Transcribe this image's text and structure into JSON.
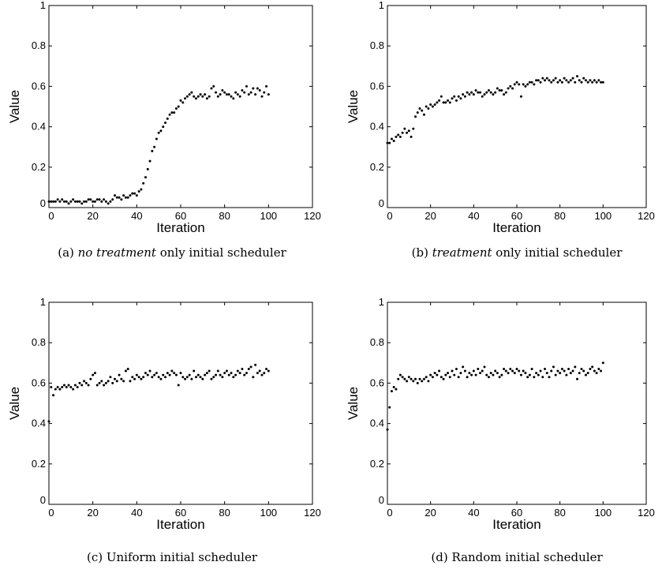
{
  "chart_data": [
    {
      "type": "scatter",
      "caption": {
        "label": "(a)",
        "italic": "no treatment",
        "rest": "only initial scheduler"
      },
      "xlabel": "Iteration",
      "ylabel": "Value",
      "xlim": [
        0,
        120
      ],
      "ylim": [
        0,
        1
      ],
      "xticks": [
        "0",
        "20",
        "40",
        "60",
        "80",
        "100",
        "120"
      ],
      "yticks": [
        "0",
        "0.2",
        "0.4",
        "0.6",
        "0.8",
        "1"
      ],
      "grid": false,
      "series": [
        {
          "color": "#000000",
          "x": [
            0,
            1,
            2,
            3,
            4,
            5,
            6,
            7,
            8,
            9,
            10,
            11,
            12,
            13,
            14,
            15,
            16,
            17,
            18,
            19,
            20,
            21,
            22,
            23,
            24,
            25,
            26,
            27,
            28,
            29,
            30,
            31,
            32,
            33,
            34,
            35,
            36,
            37,
            38,
            39,
            40,
            41,
            42,
            43,
            44,
            45,
            46,
            47,
            48,
            49,
            50,
            51,
            52,
            53,
            54,
            55,
            56,
            57,
            58,
            59,
            60,
            61,
            62,
            63,
            64,
            65,
            66,
            67,
            68,
            69,
            70,
            71,
            72,
            73,
            74,
            75,
            76,
            77,
            78,
            79,
            80,
            81,
            82,
            83,
            84,
            85,
            86,
            87,
            88,
            89,
            90,
            91,
            92,
            93,
            94,
            95,
            96,
            97,
            98,
            99,
            100
          ],
          "y": [
            0.03,
            0.03,
            0.03,
            0.03,
            0.04,
            0.03,
            0.04,
            0.03,
            0.03,
            0.02,
            0.03,
            0.04,
            0.03,
            0.03,
            0.03,
            0.02,
            0.03,
            0.03,
            0.04,
            0.04,
            0.03,
            0.03,
            0.04,
            0.04,
            0.03,
            0.04,
            0.03,
            0.02,
            0.03,
            0.04,
            0.06,
            0.05,
            0.05,
            0.04,
            0.06,
            0.05,
            0.05,
            0.06,
            0.07,
            0.07,
            0.06,
            0.08,
            0.09,
            0.12,
            0.15,
            0.19,
            0.23,
            0.28,
            0.3,
            0.34,
            0.37,
            0.38,
            0.4,
            0.42,
            0.44,
            0.46,
            0.47,
            0.47,
            0.49,
            0.5,
            0.53,
            0.52,
            0.54,
            0.55,
            0.56,
            0.57,
            0.55,
            0.54,
            0.55,
            0.56,
            0.55,
            0.56,
            0.54,
            0.55,
            0.59,
            0.6,
            0.57,
            0.55,
            0.56,
            0.58,
            0.57,
            0.56,
            0.56,
            0.55,
            0.54,
            0.57,
            0.56,
            0.55,
            0.58,
            0.57,
            0.6,
            0.56,
            0.57,
            0.59,
            0.56,
            0.59,
            0.58,
            0.55,
            0.57,
            0.6,
            0.56
          ]
        }
      ]
    },
    {
      "type": "scatter",
      "caption": {
        "label": "(b)",
        "italic": "treatment",
        "rest": "only initial scheduler"
      },
      "xlabel": "Iteration",
      "ylabel": "Value",
      "xlim": [
        0,
        120
      ],
      "ylim": [
        0,
        1
      ],
      "xticks": [
        "0",
        "20",
        "40",
        "60",
        "80",
        "100",
        "120"
      ],
      "yticks": [
        "0",
        "0.2",
        "0.4",
        "0.6",
        "0.8",
        "1"
      ],
      "grid": false,
      "series": [
        {
          "color": "#000000",
          "x": [
            0,
            1,
            2,
            3,
            4,
            5,
            6,
            7,
            8,
            9,
            10,
            11,
            12,
            13,
            14,
            15,
            16,
            17,
            18,
            19,
            20,
            21,
            22,
            23,
            24,
            25,
            26,
            27,
            28,
            29,
            30,
            31,
            32,
            33,
            34,
            35,
            36,
            37,
            38,
            39,
            40,
            41,
            42,
            43,
            44,
            45,
            46,
            47,
            48,
            49,
            50,
            51,
            52,
            53,
            54,
            55,
            56,
            57,
            58,
            59,
            60,
            61,
            62,
            63,
            64,
            65,
            66,
            67,
            68,
            69,
            70,
            71,
            72,
            73,
            74,
            75,
            76,
            77,
            78,
            79,
            80,
            81,
            82,
            83,
            84,
            85,
            86,
            87,
            88,
            89,
            90,
            91,
            92,
            93,
            94,
            95,
            96,
            97,
            98,
            99,
            100
          ],
          "y": [
            0.32,
            0.32,
            0.34,
            0.33,
            0.35,
            0.36,
            0.35,
            0.37,
            0.39,
            0.37,
            0.38,
            0.35,
            0.39,
            0.45,
            0.47,
            0.49,
            0.48,
            0.46,
            0.5,
            0.49,
            0.51,
            0.5,
            0.51,
            0.52,
            0.53,
            0.55,
            0.52,
            0.52,
            0.53,
            0.52,
            0.54,
            0.55,
            0.53,
            0.55,
            0.54,
            0.56,
            0.55,
            0.57,
            0.56,
            0.57,
            0.56,
            0.58,
            0.57,
            0.57,
            0.55,
            0.56,
            0.57,
            0.58,
            0.57,
            0.56,
            0.57,
            0.59,
            0.58,
            0.58,
            0.56,
            0.57,
            0.59,
            0.6,
            0.59,
            0.61,
            0.62,
            0.61,
            0.55,
            0.61,
            0.6,
            0.61,
            0.62,
            0.62,
            0.61,
            0.63,
            0.63,
            0.62,
            0.64,
            0.63,
            0.64,
            0.63,
            0.62,
            0.63,
            0.64,
            0.62,
            0.63,
            0.62,
            0.64,
            0.63,
            0.62,
            0.63,
            0.64,
            0.62,
            0.65,
            0.63,
            0.62,
            0.64,
            0.63,
            0.62,
            0.63,
            0.62,
            0.63,
            0.62,
            0.63,
            0.62,
            0.62
          ]
        }
      ]
    },
    {
      "type": "scatter",
      "caption": {
        "label": "(c)",
        "italic": "",
        "rest": "Uniform initial scheduler"
      },
      "xlabel": "Iteration",
      "ylabel": "Value",
      "xlim": [
        0,
        120
      ],
      "ylim": [
        0,
        1
      ],
      "xticks": [
        "0",
        "20",
        "40",
        "60",
        "80",
        "100",
        "120"
      ],
      "yticks": [
        "0",
        "0.2",
        "0.4",
        "0.6",
        "0.8",
        "1"
      ],
      "grid": false,
      "series": [
        {
          "color": "#000000",
          "x": [
            0,
            1,
            2,
            3,
            4,
            5,
            6,
            7,
            8,
            9,
            10,
            11,
            12,
            13,
            14,
            15,
            16,
            17,
            18,
            19,
            20,
            21,
            22,
            23,
            24,
            25,
            26,
            27,
            28,
            29,
            30,
            31,
            32,
            33,
            34,
            35,
            36,
            37,
            38,
            39,
            40,
            41,
            42,
            43,
            44,
            45,
            46,
            47,
            48,
            49,
            50,
            51,
            52,
            53,
            54,
            55,
            56,
            57,
            58,
            59,
            60,
            61,
            62,
            63,
            64,
            65,
            66,
            67,
            68,
            69,
            70,
            71,
            72,
            73,
            74,
            75,
            76,
            77,
            78,
            79,
            80,
            81,
            82,
            83,
            84,
            85,
            86,
            87,
            88,
            89,
            90,
            91,
            92,
            93,
            94,
            95,
            96,
            97,
            98,
            99,
            100
          ],
          "y": [
            0.41,
            0.58,
            0.54,
            0.57,
            0.58,
            0.57,
            0.58,
            0.59,
            0.58,
            0.59,
            0.58,
            0.57,
            0.59,
            0.58,
            0.6,
            0.59,
            0.61,
            0.6,
            0.59,
            0.62,
            0.64,
            0.65,
            0.59,
            0.6,
            0.61,
            0.59,
            0.6,
            0.61,
            0.63,
            0.6,
            0.62,
            0.61,
            0.64,
            0.62,
            0.61,
            0.66,
            0.67,
            0.61,
            0.63,
            0.62,
            0.64,
            0.63,
            0.62,
            0.63,
            0.65,
            0.64,
            0.66,
            0.63,
            0.64,
            0.65,
            0.63,
            0.62,
            0.64,
            0.63,
            0.65,
            0.64,
            0.66,
            0.65,
            0.64,
            0.59,
            0.65,
            0.63,
            0.62,
            0.63,
            0.64,
            0.62,
            0.66,
            0.63,
            0.64,
            0.63,
            0.62,
            0.64,
            0.65,
            0.66,
            0.62,
            0.63,
            0.64,
            0.66,
            0.64,
            0.63,
            0.65,
            0.66,
            0.64,
            0.65,
            0.63,
            0.64,
            0.66,
            0.65,
            0.67,
            0.64,
            0.65,
            0.67,
            0.68,
            0.63,
            0.69,
            0.65,
            0.66,
            0.64,
            0.65,
            0.67,
            0.66
          ]
        }
      ]
    },
    {
      "type": "scatter",
      "caption": {
        "label": "(d)",
        "italic": "",
        "rest": "Random initial scheduler"
      },
      "xlabel": "Iteration",
      "ylabel": "Value",
      "xlim": [
        0,
        120
      ],
      "ylim": [
        0,
        1
      ],
      "xticks": [
        "0",
        "20",
        "40",
        "60",
        "80",
        "100",
        "120"
      ],
      "yticks": [
        "0",
        "0.2",
        "0.4",
        "0.6",
        "0.8",
        "1"
      ],
      "grid": false,
      "series": [
        {
          "color": "#000000",
          "x": [
            0,
            1,
            2,
            3,
            4,
            5,
            6,
            7,
            8,
            9,
            10,
            11,
            12,
            13,
            14,
            15,
            16,
            17,
            18,
            19,
            20,
            21,
            22,
            23,
            24,
            25,
            26,
            27,
            28,
            29,
            30,
            31,
            32,
            33,
            34,
            35,
            36,
            37,
            38,
            39,
            40,
            41,
            42,
            43,
            44,
            45,
            46,
            47,
            48,
            49,
            50,
            51,
            52,
            53,
            54,
            55,
            56,
            57,
            58,
            59,
            60,
            61,
            62,
            63,
            64,
            65,
            66,
            67,
            68,
            69,
            70,
            71,
            72,
            73,
            74,
            75,
            76,
            77,
            78,
            79,
            80,
            81,
            82,
            83,
            84,
            85,
            86,
            87,
            88,
            89,
            90,
            91,
            92,
            93,
            94,
            95,
            96,
            97,
            98,
            99,
            100
          ],
          "y": [
            0.37,
            0.48,
            0.56,
            0.58,
            0.57,
            0.62,
            0.64,
            0.63,
            0.62,
            0.61,
            0.63,
            0.62,
            0.61,
            0.62,
            0.6,
            0.62,
            0.61,
            0.62,
            0.63,
            0.61,
            0.64,
            0.63,
            0.65,
            0.64,
            0.66,
            0.63,
            0.62,
            0.64,
            0.65,
            0.63,
            0.66,
            0.64,
            0.67,
            0.63,
            0.65,
            0.68,
            0.66,
            0.63,
            0.65,
            0.64,
            0.66,
            0.64,
            0.67,
            0.65,
            0.66,
            0.68,
            0.64,
            0.63,
            0.65,
            0.64,
            0.66,
            0.65,
            0.63,
            0.64,
            0.67,
            0.66,
            0.65,
            0.67,
            0.66,
            0.65,
            0.67,
            0.66,
            0.64,
            0.66,
            0.65,
            0.63,
            0.64,
            0.67,
            0.63,
            0.65,
            0.64,
            0.66,
            0.63,
            0.67,
            0.65,
            0.63,
            0.66,
            0.68,
            0.64,
            0.66,
            0.65,
            0.67,
            0.66,
            0.64,
            0.67,
            0.65,
            0.66,
            0.68,
            0.62,
            0.65,
            0.67,
            0.66,
            0.64,
            0.65,
            0.67,
            0.68,
            0.66,
            0.65,
            0.67,
            0.66,
            0.7
          ]
        }
      ]
    }
  ]
}
